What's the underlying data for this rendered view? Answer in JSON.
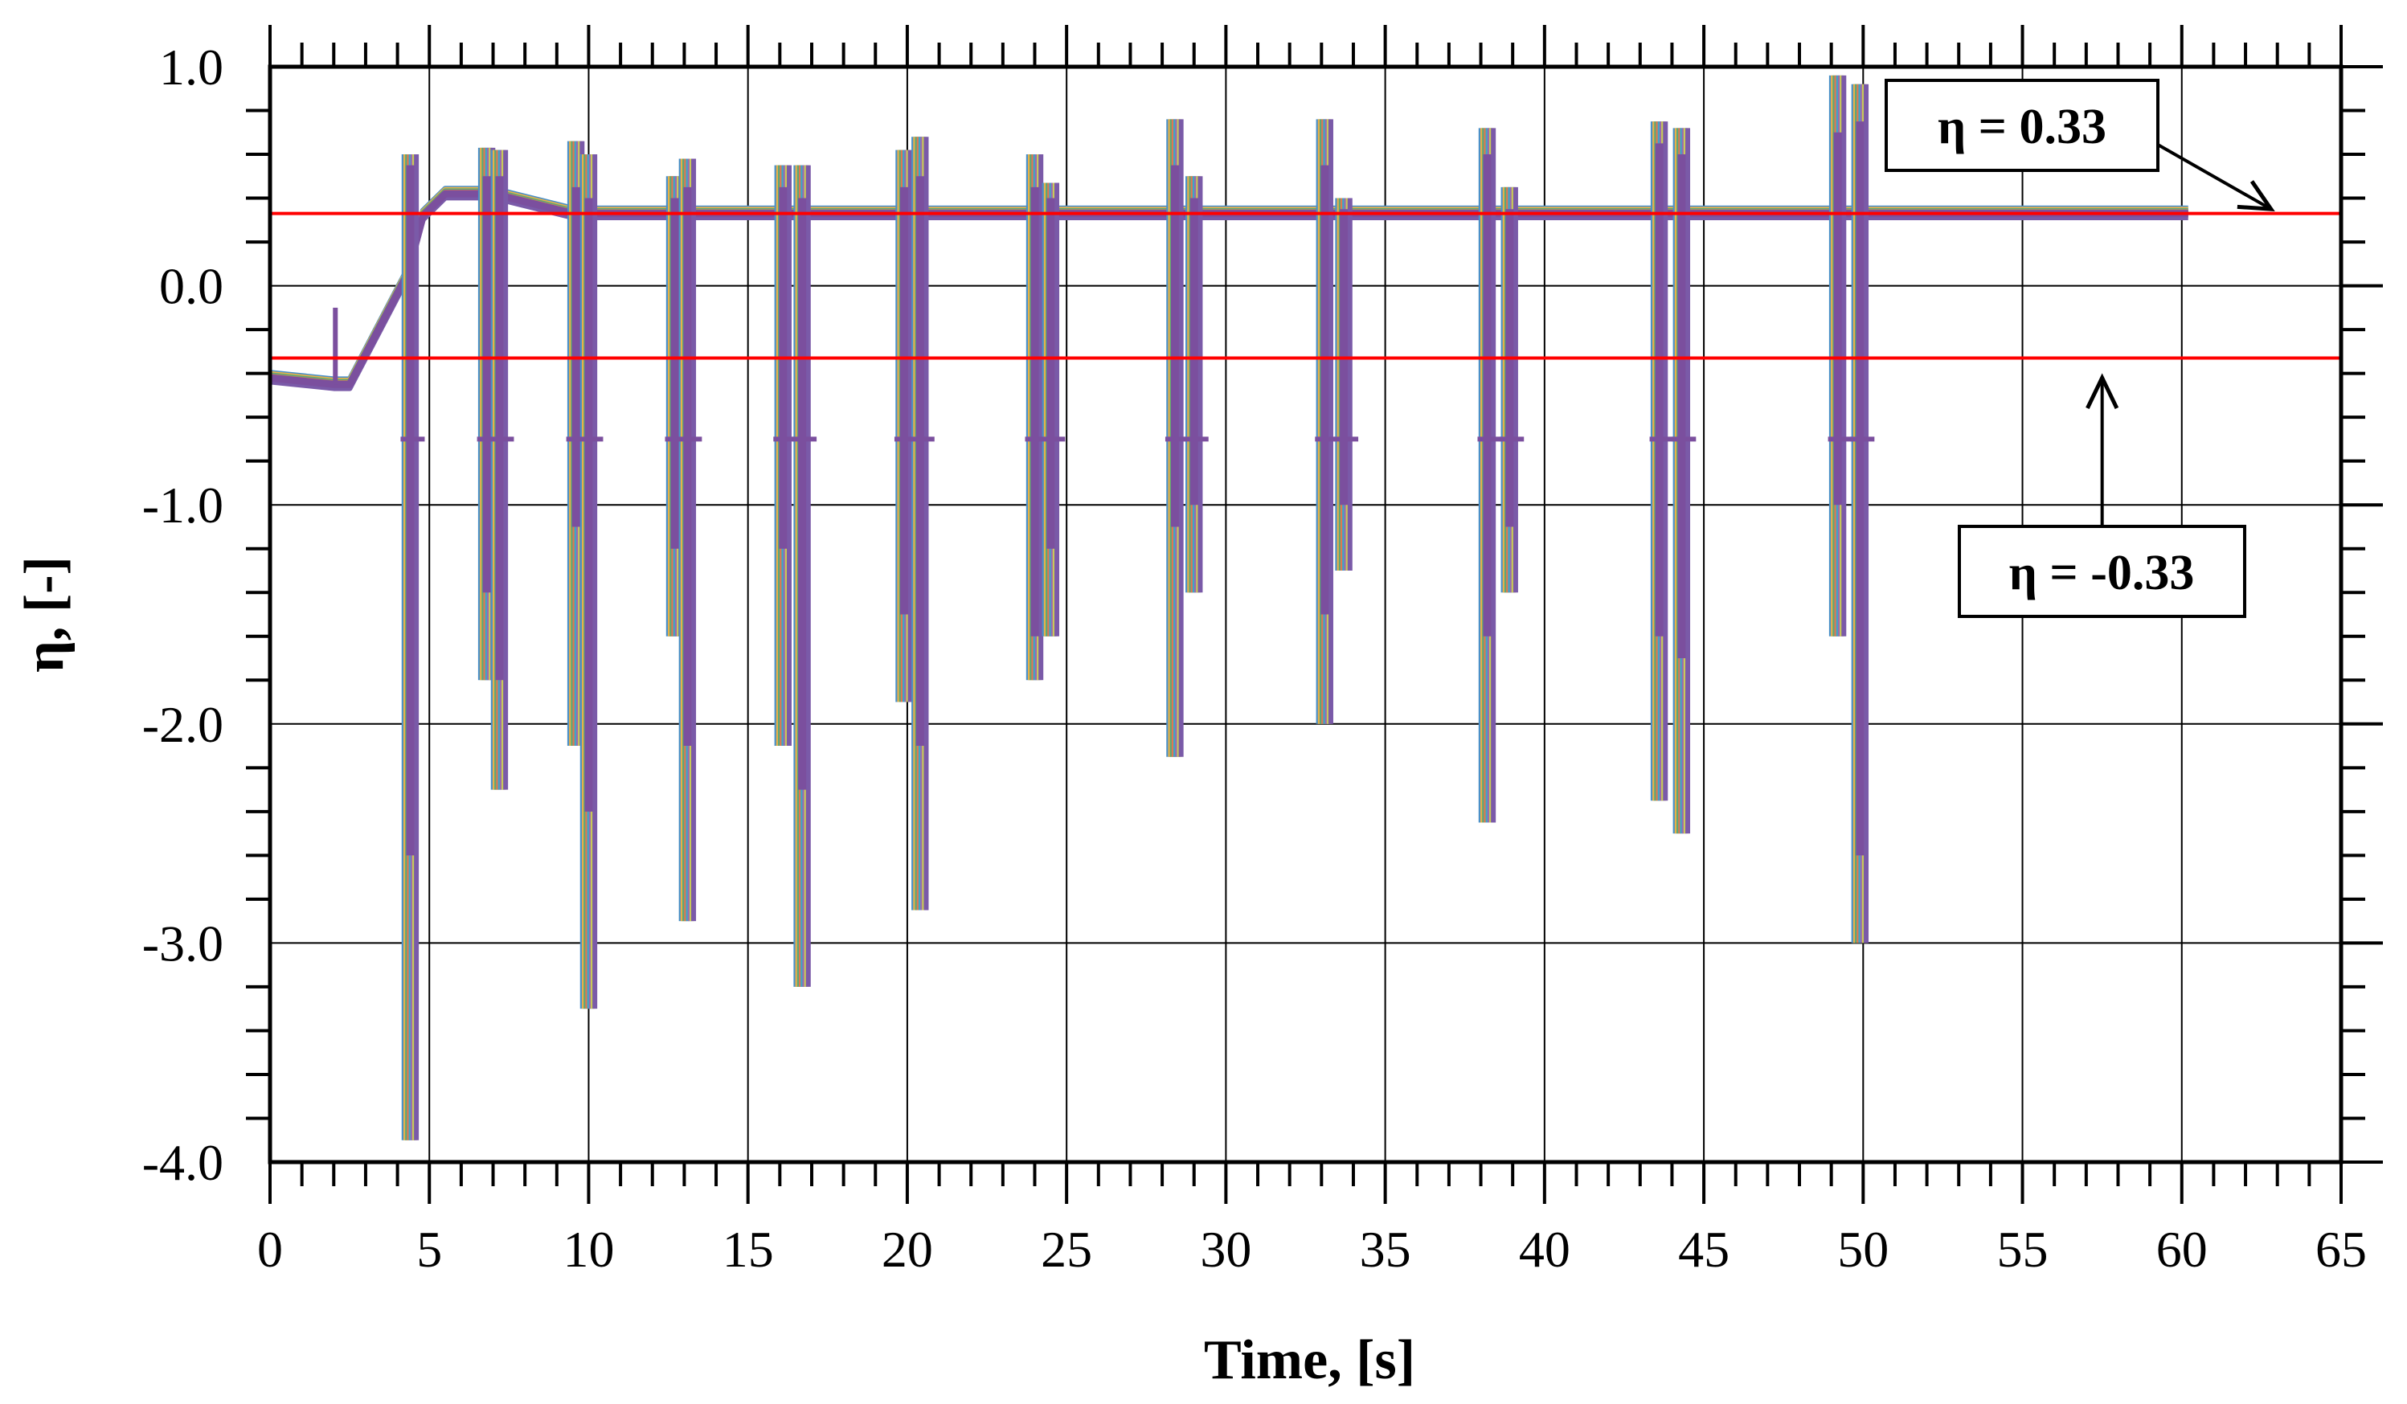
{
  "chart_data": {
    "type": "line",
    "title": "",
    "xlabel": "Time, [s]",
    "ylabel": "η, [-]",
    "xlim": [
      0,
      65
    ],
    "ylim": [
      -4.0,
      1.0
    ],
    "x_ticks": [
      0,
      5,
      10,
      15,
      20,
      25,
      30,
      35,
      40,
      45,
      50,
      55,
      60,
      65
    ],
    "x_tick_labels": [
      "0",
      "5",
      "10",
      "15",
      "20",
      "25",
      "30",
      "35",
      "40",
      "45",
      "50",
      "55",
      "60",
      "65"
    ],
    "y_ticks": [
      1.0,
      0.0,
      -1.0,
      -2.0,
      -3.0,
      -4.0
    ],
    "y_tick_labels": [
      "1.0",
      "0.0",
      "-1.0",
      "-2.0",
      "-3.0",
      "-4.0"
    ],
    "grid": true,
    "legend": "none",
    "reference_lines": [
      {
        "y": 0.33,
        "color": "#ff0000",
        "label": "η = 0.33"
      },
      {
        "y": -0.33,
        "color": "#ff0000",
        "label": "η = -0.33"
      }
    ],
    "annotations": [
      {
        "text": "η = 0.33",
        "arrow_to": {
          "x": 62.8,
          "y": 0.35
        }
      },
      {
        "text": "η = -0.33",
        "arrow_to": {
          "x": 57.5,
          "y": -0.42
        }
      }
    ],
    "series_colors": [
      "#4a90c8",
      "#e8b048",
      "#5aa878",
      "#e07850",
      "#3aa8c8",
      "#9a6ab0",
      "#c8c858",
      "#7a5aa8"
    ],
    "main_series_color": "#7b4f9e",
    "baseline_path": [
      [
        0,
        -0.42
      ],
      [
        2.0,
        -0.45
      ],
      [
        2.5,
        -0.45
      ],
      [
        4.3,
        0.05
      ],
      [
        4.8,
        0.32
      ],
      [
        5.5,
        0.42
      ],
      [
        7.0,
        0.42
      ],
      [
        9.5,
        0.33
      ],
      [
        10.0,
        0.33
      ],
      [
        60.2,
        0.33
      ]
    ],
    "spikes": [
      {
        "t": 4.4,
        "max": 0.6,
        "min": -3.9,
        "wmax": 0.55,
        "wmin": -2.6
      },
      {
        "t": 6.8,
        "max": 0.63,
        "min": -1.8,
        "wmax": 0.5,
        "wmin": -1.4
      },
      {
        "t": 7.2,
        "max": 0.62,
        "min": -2.3,
        "wmax": 0.5,
        "wmin": -1.8
      },
      {
        "t": 9.6,
        "max": 0.66,
        "min": -2.1,
        "wmax": 0.45,
        "wmin": -1.1
      },
      {
        "t": 10.0,
        "max": 0.6,
        "min": -3.3,
        "wmax": 0.4,
        "wmin": -2.4
      },
      {
        "t": 12.7,
        "max": 0.5,
        "min": -1.6,
        "wmax": 0.4,
        "wmin": -1.2
      },
      {
        "t": 13.1,
        "max": 0.58,
        "min": -2.9,
        "wmax": 0.45,
        "wmin": -2.1
      },
      {
        "t": 16.1,
        "max": 0.55,
        "min": -2.1,
        "wmax": 0.45,
        "wmin": -1.2
      },
      {
        "t": 16.7,
        "max": 0.55,
        "min": -3.2,
        "wmax": 0.4,
        "wmin": -2.3
      },
      {
        "t": 19.9,
        "max": 0.62,
        "min": -1.9,
        "wmax": 0.45,
        "wmin": -1.5
      },
      {
        "t": 20.4,
        "max": 0.68,
        "min": -2.85,
        "wmax": 0.5,
        "wmin": -2.1
      },
      {
        "t": 24.0,
        "max": 0.6,
        "min": -1.8,
        "wmax": 0.45,
        "wmin": -1.6
      },
      {
        "t": 24.5,
        "max": 0.47,
        "min": -1.6,
        "wmax": 0.4,
        "wmin": -1.2
      },
      {
        "t": 28.4,
        "max": 0.76,
        "min": -2.15,
        "wmax": 0.55,
        "wmin": -1.1
      },
      {
        "t": 29.0,
        "max": 0.5,
        "min": -1.4,
        "wmax": 0.4,
        "wmin": -1.0
      },
      {
        "t": 33.1,
        "max": 0.76,
        "min": -2.0,
        "wmax": 0.55,
        "wmin": -1.5
      },
      {
        "t": 33.7,
        "max": 0.4,
        "min": -1.3,
        "wmax": 0.35,
        "wmin": -1.0
      },
      {
        "t": 38.2,
        "max": 0.72,
        "min": -2.45,
        "wmax": 0.6,
        "wmin": -1.6
      },
      {
        "t": 38.9,
        "max": 0.45,
        "min": -1.4,
        "wmax": 0.35,
        "wmin": -1.1
      },
      {
        "t": 43.6,
        "max": 0.75,
        "min": -2.35,
        "wmax": 0.65,
        "wmin": -1.6
      },
      {
        "t": 44.3,
        "max": 0.72,
        "min": -2.5,
        "wmax": 0.6,
        "wmin": -1.7
      },
      {
        "t": 49.2,
        "max": 0.96,
        "min": -1.6,
        "wmax": 0.7,
        "wmin": -1.0
      },
      {
        "t": 49.9,
        "max": 0.92,
        "min": -3.0,
        "wmax": 0.75,
        "wmin": -2.6
      }
    ]
  }
}
